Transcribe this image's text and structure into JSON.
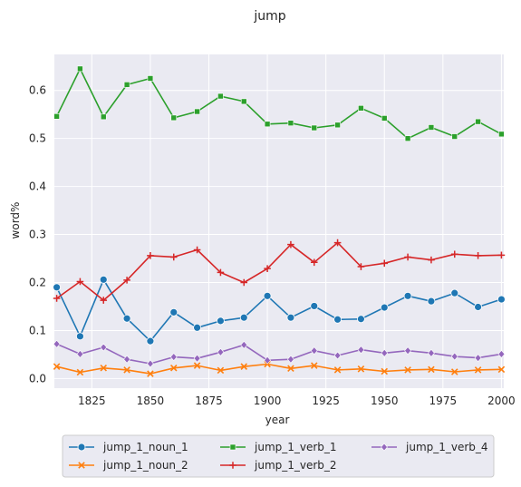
{
  "chart_data": {
    "type": "line",
    "title": "jump",
    "xlabel": "year",
    "ylabel": "word%",
    "xlim": [
      1809,
      2001
    ],
    "ylim": [
      -0.02,
      0.675
    ],
    "xticks": [
      1825,
      1850,
      1875,
      1900,
      1925,
      1950,
      1975,
      2000
    ],
    "xtick_labels": [
      "1825",
      "1850",
      "1875",
      "1900",
      "1925",
      "1950",
      "1975",
      "2000"
    ],
    "yticks": [
      0.0,
      0.1,
      0.2,
      0.3,
      0.4,
      0.5,
      0.6
    ],
    "ytick_labels": [
      "0.0",
      "0.1",
      "0.2",
      "0.3",
      "0.4",
      "0.5",
      "0.6"
    ],
    "grid": true,
    "legend_position": "bottom-center, below plot, 3 columns",
    "x": [
      1810,
      1820,
      1830,
      1840,
      1850,
      1860,
      1870,
      1880,
      1890,
      1900,
      1910,
      1920,
      1930,
      1940,
      1950,
      1960,
      1970,
      1980,
      1990,
      2000
    ],
    "series": [
      {
        "name": "jump_1_noun_1",
        "color": "#1f77b4",
        "marker": "circle",
        "values": [
          0.19,
          0.088,
          0.206,
          0.125,
          0.078,
          0.138,
          0.106,
          0.12,
          0.127,
          0.172,
          0.127,
          0.151,
          0.123,
          0.124,
          0.148,
          0.172,
          0.161,
          0.178,
          0.149,
          0.165
        ]
      },
      {
        "name": "jump_1_noun_2",
        "color": "#ff7f0e",
        "marker": "x",
        "values": [
          0.025,
          0.013,
          0.022,
          0.018,
          0.01,
          0.022,
          0.027,
          0.017,
          0.025,
          0.03,
          0.021,
          0.027,
          0.018,
          0.02,
          0.015,
          0.018,
          0.019,
          0.014,
          0.018,
          0.019
        ]
      },
      {
        "name": "jump_1_verb_1",
        "color": "#2ca02c",
        "marker": "square",
        "values": [
          0.546,
          0.645,
          0.545,
          0.612,
          0.625,
          0.543,
          0.556,
          0.588,
          0.577,
          0.53,
          0.532,
          0.522,
          0.528,
          0.563,
          0.542,
          0.5,
          0.523,
          0.504,
          0.535,
          0.509
        ]
      },
      {
        "name": "jump_1_verb_2",
        "color": "#d62728",
        "marker": "plus",
        "values": [
          0.167,
          0.202,
          0.163,
          0.205,
          0.256,
          0.253,
          0.268,
          0.221,
          0.2,
          0.229,
          0.279,
          0.242,
          0.283,
          0.233,
          0.24,
          0.253,
          0.247,
          0.259,
          0.256,
          0.257
        ]
      },
      {
        "name": "jump_1_verb_4",
        "color": "#9467bd",
        "marker": "diamond",
        "values": [
          0.072,
          0.051,
          0.065,
          0.04,
          0.031,
          0.045,
          0.042,
          0.055,
          0.07,
          0.038,
          0.04,
          0.058,
          0.048,
          0.06,
          0.053,
          0.058,
          0.053,
          0.046,
          0.043,
          0.051
        ]
      }
    ]
  },
  "colors": {
    "plot_background": "#eaeaf2",
    "grid": "#ffffff",
    "text": "#262626"
  }
}
